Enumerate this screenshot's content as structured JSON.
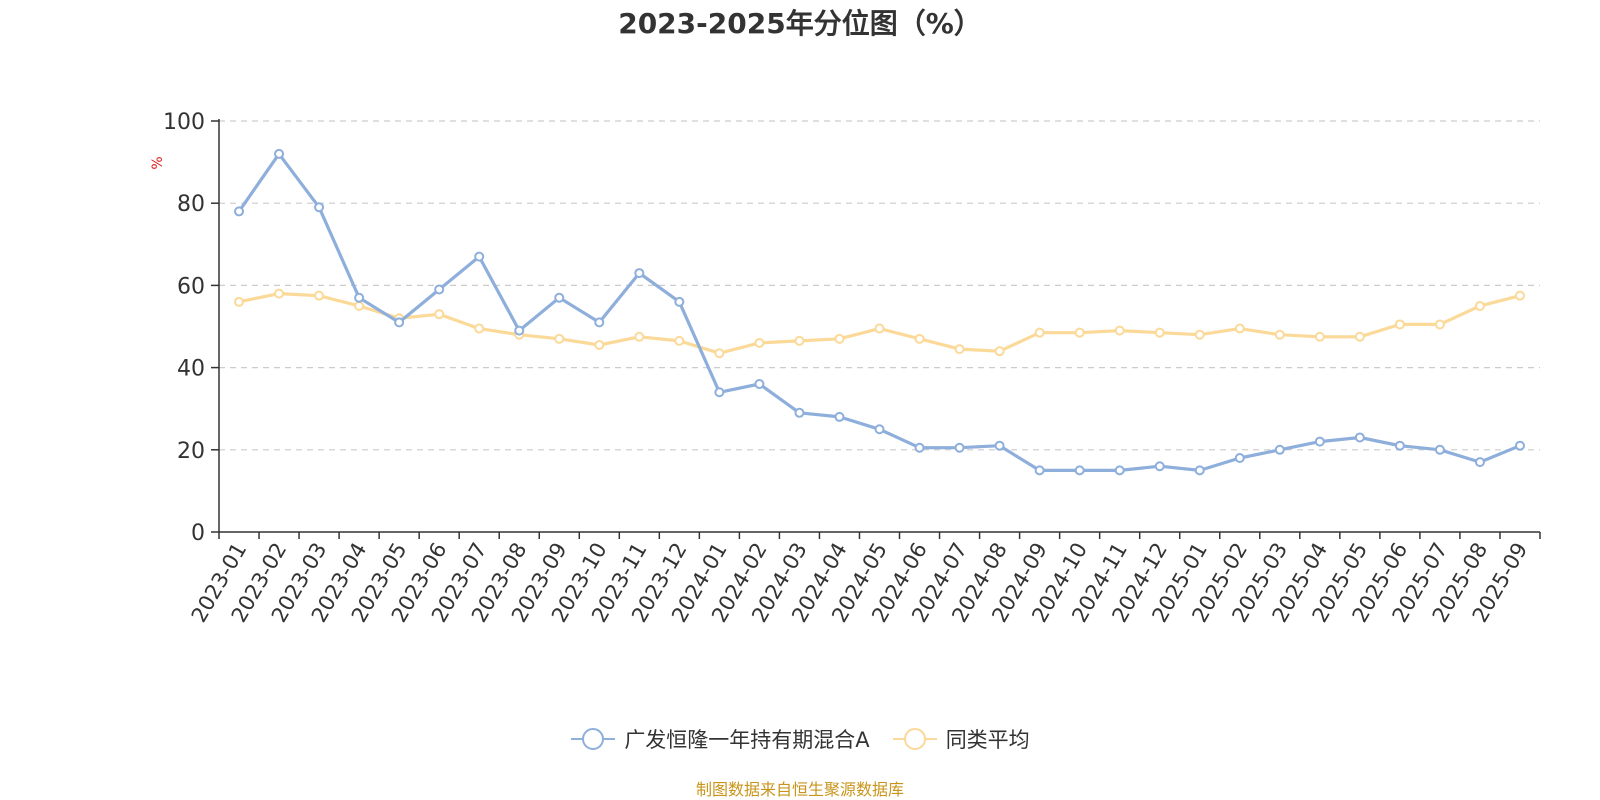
{
  "colors": {
    "series_a": "#8eaedb",
    "series_b": "#fbd998",
    "axis": "#333333",
    "grid": "#cccccc",
    "ylabel": "#e02020",
    "source": "#c8951a"
  },
  "chart_data": {
    "type": "line",
    "title": "2023-2025年分位图（%）",
    "ylabel": "%",
    "ylim": [
      0,
      100
    ],
    "yticks": [
      0,
      20,
      40,
      60,
      80,
      100
    ],
    "grid": true,
    "legend_position": "bottom-center",
    "categories": [
      "2023-01",
      "2023-02",
      "2023-03",
      "2023-04",
      "2023-05",
      "2023-06",
      "2023-07",
      "2023-08",
      "2023-09",
      "2023-10",
      "2023-11",
      "2023-12",
      "2024-01",
      "2024-02",
      "2024-03",
      "2024-04",
      "2024-05",
      "2024-06",
      "2024-07",
      "2024-08",
      "2024-09",
      "2024-10",
      "2024-11",
      "2024-12",
      "2025-01",
      "2025-02",
      "2025-03",
      "2025-04",
      "2025-05",
      "2025-06",
      "2025-07",
      "2025-08",
      "2025-09"
    ],
    "series": [
      {
        "name": "广发恒隆一年持有期混合A",
        "color": "#8eaedb",
        "values": [
          78,
          92,
          79,
          57,
          51,
          59,
          67,
          49,
          57,
          51,
          63,
          56,
          34,
          36,
          29,
          28,
          25,
          20.5,
          20.5,
          21,
          15,
          15,
          15,
          16,
          15,
          18,
          20,
          22,
          23,
          21,
          20,
          17,
          21
        ]
      },
      {
        "name": "同类平均",
        "color": "#fbd998",
        "values": [
          56,
          58,
          57.5,
          55,
          52,
          53,
          49.5,
          48,
          47,
          45.5,
          47.5,
          46.5,
          43.5,
          46,
          46.5,
          47,
          49.5,
          47,
          44.5,
          44,
          48.5,
          48.5,
          49,
          48.5,
          48,
          49.5,
          48,
          47.5,
          47.5,
          50.5,
          50.5,
          55,
          57.5
        ]
      }
    ]
  },
  "source_note": "制图数据来自恒生聚源数据库"
}
